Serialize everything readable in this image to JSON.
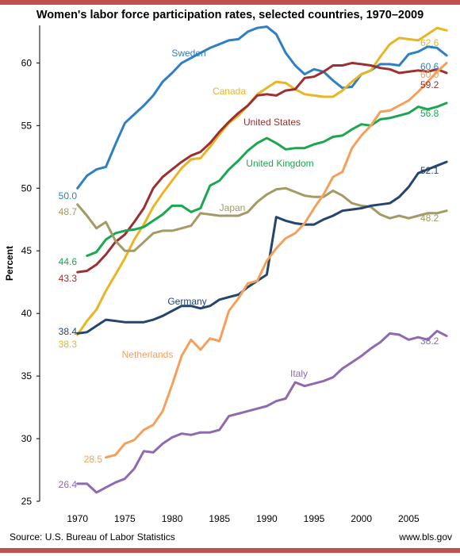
{
  "chart_data": {
    "type": "line",
    "title": "Women's labor force participation rates, selected countries, 1970–2009",
    "ylabel": "Percent",
    "xlabel": "",
    "xlim": [
      1966,
      2010
    ],
    "ylim": [
      25,
      63
    ],
    "xticks": [
      1970,
      1975,
      1980,
      1985,
      1990,
      1995,
      2000,
      2005
    ],
    "yticks": [
      25,
      30,
      35,
      40,
      45,
      50,
      55,
      60
    ],
    "grid": false,
    "series": [
      {
        "name": "Sweden",
        "color": "#2e7fc3",
        "x": [
          1970,
          1971,
          1972,
          1973,
          1974,
          1975,
          1976,
          1977,
          1978,
          1979,
          1980,
          1981,
          1982,
          1983,
          1984,
          1985,
          1986,
          1987,
          1988,
          1989,
          1990,
          1991,
          1992,
          1993,
          1994,
          1995,
          1996,
          1997,
          1998,
          1999,
          2000,
          2001,
          2002,
          2003,
          2004,
          2005,
          2006,
          2007,
          2008,
          2009
        ],
        "values": [
          50.0,
          51.0,
          51.5,
          51.7,
          53.5,
          55.2,
          55.9,
          56.6,
          57.4,
          58.5,
          59.2,
          60.0,
          60.4,
          60.8,
          61.2,
          61.5,
          61.8,
          61.9,
          62.5,
          62.8,
          62.9,
          62.3,
          60.8,
          59.8,
          59.1,
          59.5,
          59.3,
          58.6,
          58.0,
          58.1,
          59.1,
          59.4,
          59.9,
          59.9,
          59.8,
          60.7,
          60.9,
          61.3,
          61.2,
          60.6
        ]
      },
      {
        "name": "Canada",
        "color": "#e8b622",
        "x": [
          1970,
          1971,
          1972,
          1973,
          1974,
          1975,
          1976,
          1977,
          1978,
          1979,
          1980,
          1981,
          1982,
          1983,
          1984,
          1985,
          1986,
          1987,
          1988,
          1989,
          1990,
          1991,
          1992,
          1993,
          1994,
          1995,
          1996,
          1997,
          1998,
          1999,
          2000,
          2001,
          2002,
          2003,
          2004,
          2005,
          2006,
          2007,
          2008,
          2009
        ],
        "values": [
          38.3,
          39.4,
          40.3,
          41.8,
          43.1,
          44.4,
          45.9,
          47.1,
          48.5,
          49.6,
          50.6,
          51.6,
          52.3,
          52.4,
          53.3,
          54.3,
          55.2,
          55.8,
          56.6,
          57.5,
          58.0,
          58.5,
          58.4,
          57.9,
          57.5,
          57.4,
          57.3,
          57.3,
          57.8,
          58.5,
          59.1,
          59.4,
          60.5,
          61.5,
          62.0,
          61.9,
          61.8,
          62.3,
          62.8,
          62.6
        ]
      },
      {
        "name": "United States",
        "color": "#9b3032",
        "x": [
          1970,
          1971,
          1972,
          1973,
          1974,
          1975,
          1976,
          1977,
          1978,
          1979,
          1980,
          1981,
          1982,
          1983,
          1984,
          1985,
          1986,
          1987,
          1988,
          1989,
          1990,
          1991,
          1992,
          1993,
          1994,
          1995,
          1996,
          1997,
          1998,
          1999,
          2000,
          2001,
          2002,
          2003,
          2004,
          2005,
          2006,
          2007,
          2008,
          2009
        ],
        "values": [
          43.3,
          43.4,
          43.9,
          44.7,
          45.7,
          46.3,
          47.3,
          48.4,
          50.0,
          50.9,
          51.5,
          52.1,
          52.6,
          52.9,
          53.6,
          54.5,
          55.3,
          56.0,
          56.6,
          57.4,
          57.5,
          57.4,
          57.8,
          57.9,
          58.8,
          58.9,
          59.3,
          59.8,
          59.8,
          60.0,
          59.9,
          59.8,
          59.6,
          59.5,
          59.2,
          59.3,
          59.4,
          59.3,
          59.5,
          59.2
        ]
      },
      {
        "name": "United Kingdom",
        "color": "#1ba74f",
        "x": [
          1971,
          1972,
          1973,
          1974,
          1975,
          1976,
          1977,
          1978,
          1979,
          1980,
          1981,
          1982,
          1983,
          1984,
          1985,
          1986,
          1987,
          1988,
          1989,
          1990,
          1991,
          1992,
          1993,
          1994,
          1995,
          1996,
          1997,
          1998,
          1999,
          2000,
          2001,
          2002,
          2003,
          2004,
          2005,
          2006,
          2007,
          2008,
          2009
        ],
        "values": [
          44.6,
          44.9,
          45.9,
          46.4,
          46.6,
          46.7,
          46.9,
          47.4,
          47.9,
          48.6,
          48.6,
          48.1,
          48.4,
          50.2,
          50.6,
          51.5,
          52.2,
          53.0,
          53.6,
          54.0,
          53.6,
          53.1,
          53.2,
          53.2,
          53.5,
          53.7,
          54.1,
          54.2,
          54.7,
          55.1,
          55.0,
          55.5,
          55.6,
          55.8,
          56.0,
          56.5,
          56.3,
          56.5,
          56.8
        ]
      },
      {
        "name": "Japan",
        "color": "#a39a64",
        "x": [
          1970,
          1971,
          1972,
          1973,
          1974,
          1975,
          1976,
          1977,
          1978,
          1979,
          1980,
          1981,
          1982,
          1983,
          1984,
          1985,
          1986,
          1987,
          1988,
          1989,
          1990,
          1991,
          1992,
          1993,
          1994,
          1995,
          1996,
          1997,
          1998,
          1999,
          2000,
          2001,
          2002,
          2003,
          2004,
          2005,
          2006,
          2007,
          2008,
          2009
        ],
        "values": [
          48.7,
          47.8,
          46.8,
          47.3,
          45.8,
          45.0,
          45.0,
          45.7,
          46.4,
          46.6,
          46.6,
          46.8,
          47.0,
          48.0,
          47.9,
          47.8,
          47.8,
          47.8,
          48.1,
          48.9,
          49.5,
          49.9,
          50.0,
          49.7,
          49.4,
          49.3,
          49.3,
          49.8,
          49.4,
          48.8,
          48.6,
          48.5,
          47.9,
          47.6,
          47.8,
          47.6,
          47.8,
          48.0,
          48.0,
          48.2
        ]
      },
      {
        "name": "Germany",
        "color": "#24456e",
        "x": [
          1970,
          1971,
          1972,
          1973,
          1974,
          1975,
          1976,
          1977,
          1978,
          1979,
          1980,
          1981,
          1982,
          1983,
          1984,
          1985,
          1986,
          1987,
          1988,
          1989,
          1990,
          1991,
          1992,
          1993,
          1994,
          1995,
          1996,
          1997,
          1998,
          1999,
          2000,
          2001,
          2002,
          2003,
          2004,
          2005,
          2006,
          2007,
          2008,
          2009
        ],
        "values": [
          38.4,
          38.5,
          39.0,
          39.5,
          39.4,
          39.3,
          39.3,
          39.3,
          39.5,
          39.8,
          40.2,
          40.6,
          40.6,
          40.4,
          40.6,
          41.1,
          41.3,
          41.5,
          42.1,
          42.6,
          43.1,
          47.7,
          47.4,
          47.2,
          47.1,
          47.1,
          47.5,
          47.8,
          48.2,
          48.3,
          48.4,
          48.6,
          48.7,
          48.8,
          49.3,
          50.1,
          51.2,
          51.5,
          51.8,
          52.1
        ]
      },
      {
        "name": "Netherlands",
        "color": "#f4a05a",
        "x": [
          1973,
          1974,
          1975,
          1976,
          1977,
          1978,
          1979,
          1980,
          1981,
          1982,
          1983,
          1984,
          1985,
          1986,
          1987,
          1988,
          1989,
          1990,
          1991,
          1992,
          1993,
          1994,
          1995,
          1996,
          1997,
          1998,
          1999,
          2000,
          2001,
          2002,
          2003,
          2004,
          2005,
          2006,
          2007,
          2008,
          2009
        ],
        "values": [
          28.5,
          28.7,
          29.6,
          29.9,
          30.7,
          31.1,
          32.2,
          34.3,
          36.6,
          37.9,
          37.1,
          38.0,
          37.8,
          40.2,
          41.2,
          42.4,
          42.6,
          44.2,
          45.2,
          46.0,
          46.4,
          47.2,
          48.4,
          49.5,
          50.9,
          51.3,
          53.2,
          54.2,
          55.0,
          56.1,
          56.2,
          56.6,
          57.0,
          57.7,
          58.5,
          59.3,
          60.0
        ]
      },
      {
        "name": "Italy",
        "color": "#8e6ab0",
        "x": [
          1970,
          1971,
          1972,
          1973,
          1974,
          1975,
          1976,
          1977,
          1978,
          1979,
          1980,
          1981,
          1982,
          1983,
          1984,
          1985,
          1986,
          1987,
          1988,
          1989,
          1990,
          1991,
          1992,
          1993,
          1994,
          1995,
          1996,
          1997,
          1998,
          1999,
          2000,
          2001,
          2002,
          2003,
          2004,
          2005,
          2006,
          2007,
          2008,
          2009
        ],
        "values": [
          26.4,
          26.4,
          25.7,
          26.1,
          26.5,
          26.8,
          27.6,
          29.0,
          28.9,
          29.6,
          30.1,
          30.4,
          30.3,
          30.5,
          30.5,
          30.7,
          31.8,
          32.0,
          32.2,
          32.4,
          32.6,
          33.0,
          33.2,
          34.5,
          34.2,
          34.4,
          34.6,
          34.9,
          35.6,
          36.1,
          36.6,
          37.2,
          37.7,
          38.4,
          38.3,
          37.9,
          38.1,
          37.9,
          38.6,
          38.2
        ]
      }
    ],
    "annotations": {
      "series_labels": [
        "Sweden",
        "Canada",
        "United States",
        "United Kingdom",
        "Japan",
        "Germany",
        "Netherlands",
        "Italy"
      ],
      "start_values": [
        {
          "series": "Sweden",
          "text": "50.0"
        },
        {
          "series": "Japan",
          "text": "48.7"
        },
        {
          "series": "United Kingdom",
          "text": "44.6"
        },
        {
          "series": "United States",
          "text": "43.3"
        },
        {
          "series": "Germany",
          "text": "38.4"
        },
        {
          "series": "Canada",
          "text": "38.3"
        },
        {
          "series": "Netherlands",
          "text": "28.5"
        },
        {
          "series": "Italy",
          "text": "26.4"
        }
      ],
      "end_values": [
        {
          "series": "Canada",
          "text": "62.6"
        },
        {
          "series": "Sweden",
          "text": "60.6"
        },
        {
          "series": "Netherlands",
          "text": "60.0"
        },
        {
          "series": "United States",
          "text": "59.2"
        },
        {
          "series": "United Kingdom",
          "text": "56.8"
        },
        {
          "series": "Germany",
          "text": "52.1"
        },
        {
          "series": "Japan",
          "text": "48.2"
        },
        {
          "series": "Italy",
          "text": "38.2"
        }
      ]
    }
  },
  "footer": {
    "source": "Source: U.S. Bureau of Labor Statistics",
    "site": "www.bls.gov"
  },
  "colors": {
    "accent_bar": "#c0504d"
  }
}
